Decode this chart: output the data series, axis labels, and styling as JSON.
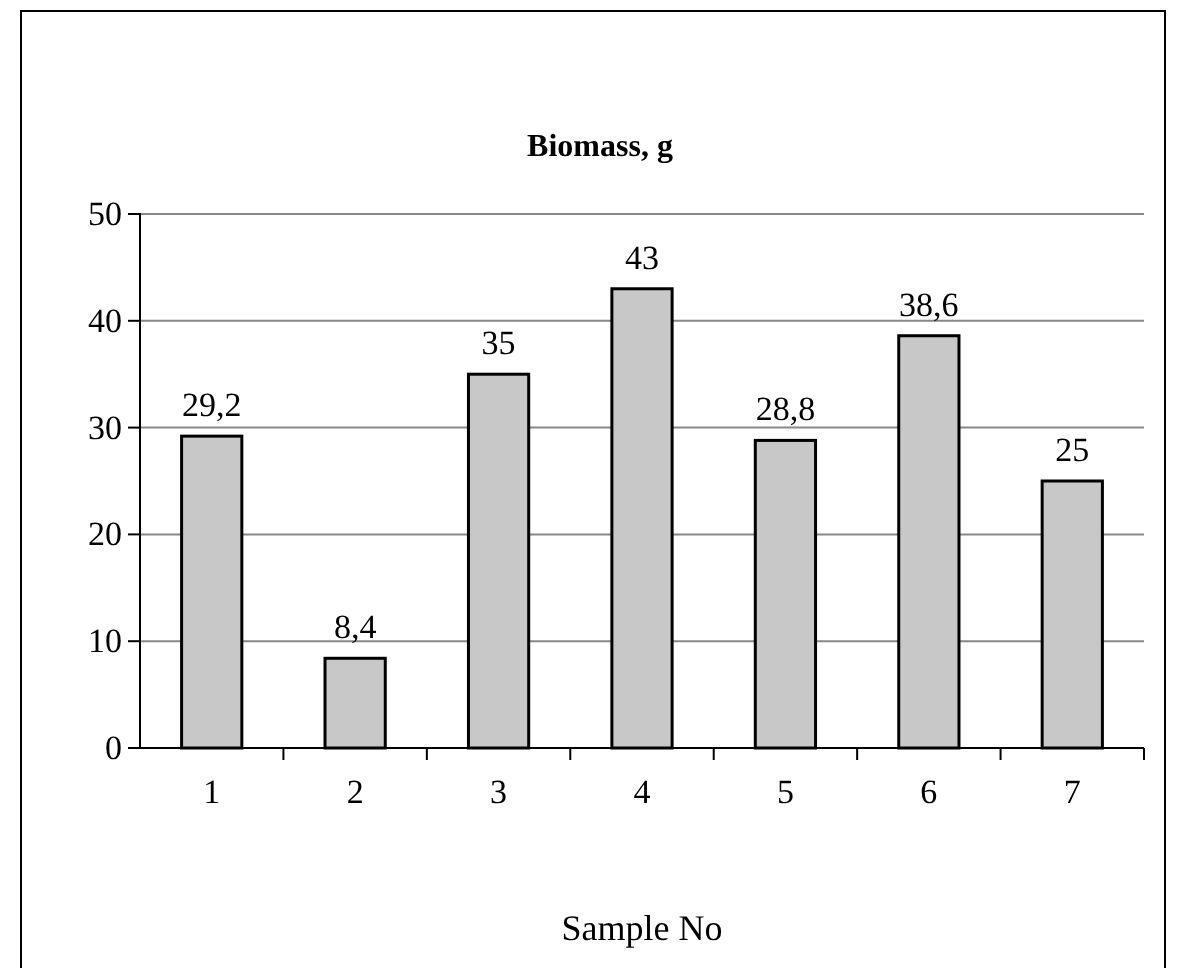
{
  "chart_data": {
    "type": "bar",
    "title": "Biomass, g",
    "xlabel": "Sample No",
    "categories": [
      "1",
      "2",
      "3",
      "4",
      "5",
      "6",
      "7"
    ],
    "values": [
      29.2,
      8.4,
      35,
      43,
      28.8,
      38.6,
      25
    ],
    "value_labels": [
      "29,2",
      "8,4",
      "35",
      "43",
      "28,8",
      "38,6",
      "25"
    ],
    "color": "#c8c8c8",
    "ylim": [
      0,
      50
    ],
    "yticks": [
      0,
      10,
      20,
      30,
      40,
      50
    ],
    "grid": "y"
  }
}
